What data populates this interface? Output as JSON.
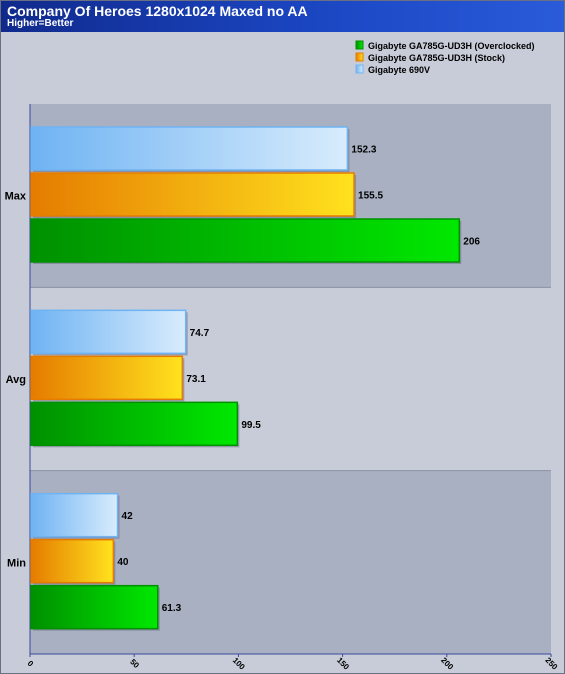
{
  "header": {
    "title": "Company Of Heroes 1280x1024 Maxed no AA",
    "subtitle": "Higher=Better"
  },
  "chart_data": {
    "type": "bar",
    "orientation": "horizontal",
    "title": "Company Of Heroes 1280x1024 Maxed no AA",
    "subtitle": "Higher=Better",
    "categories": [
      "Max",
      "Avg",
      "Min"
    ],
    "series": [
      {
        "name": "Gigabyte 690V",
        "values": [
          152.3,
          74.7,
          42
        ],
        "color_light": "#d8ecfc",
        "color_dark": "#6fb3f3",
        "label_text": [
          "152.3",
          "74.7",
          "42"
        ]
      },
      {
        "name": "Gigabyte GA785G-UD3H (Stock)",
        "values": [
          155.5,
          73.1,
          40
        ],
        "color_light": "#ffe21e",
        "color_dark": "#e57c00",
        "label_text": [
          "155.5",
          "73.1",
          "40"
        ]
      },
      {
        "name": "Gigabyte GA785G-UD3H (Overclocked)",
        "values": [
          206,
          99.5,
          61.3
        ],
        "color_light": "#00e800",
        "color_dark": "#009000",
        "label_text": [
          "206",
          "99.5",
          "61.3"
        ]
      }
    ],
    "legend_order": [
      "Gigabyte GA785G-UD3H (Overclocked)",
      "Gigabyte GA785G-UD3H (Stock)",
      "Gigabyte 690V"
    ],
    "xlim": [
      0,
      250
    ],
    "xticks": [
      "0",
      "50",
      "100",
      "150",
      "200",
      "250"
    ],
    "legend_position": "top-right",
    "grid": false
  }
}
